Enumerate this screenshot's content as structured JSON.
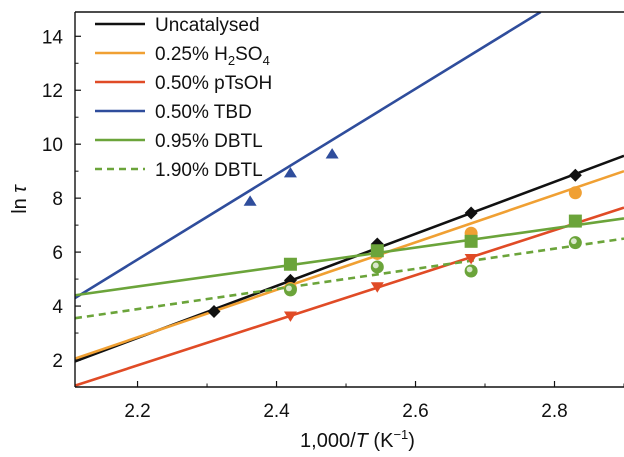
{
  "chart_data": {
    "type": "scatter",
    "xlabel_parts": {
      "prefix": "1,000/",
      "var": "T",
      "unit_open": " (K",
      "unit_exp": "−1",
      "unit_close": ")"
    },
    "ylabel_parts": {
      "prefix": "ln ",
      "var": "τ"
    },
    "xlim": [
      2.11,
      2.9
    ],
    "ylim": [
      1.0,
      14.9
    ],
    "x_ticks": [
      2.2,
      2.4,
      2.6,
      2.8
    ],
    "x_tick_labels": [
      "2.2",
      "2.4",
      "2.6",
      "2.8"
    ],
    "y_ticks": [
      2,
      4,
      6,
      8,
      10,
      12,
      14
    ],
    "y_tick_labels": [
      "2",
      "4",
      "6",
      "8",
      "10",
      "12",
      "14"
    ],
    "legend_position": "top-left",
    "series": [
      {
        "name": "Uncatalysed",
        "label_parts": [
          "Uncatalysed"
        ],
        "color": "#111111",
        "marker": "diamond",
        "dash": "solid",
        "fit": [
          [
            2.11,
            1.95
          ],
          [
            2.9,
            9.57
          ]
        ],
        "points": [
          [
            2.31,
            3.8
          ],
          [
            2.42,
            4.95
          ],
          [
            2.545,
            6.3
          ],
          [
            2.68,
            7.45
          ],
          [
            2.83,
            8.85
          ]
        ]
      },
      {
        "name": "0.25% H2SO4",
        "label_parts": [
          "0.25% H",
          "2",
          "SO",
          "4"
        ],
        "color": "#f0a033",
        "marker": "circle",
        "dash": "solid",
        "fit": [
          [
            2.11,
            2.05
          ],
          [
            2.9,
            9.0
          ]
        ],
        "points": [
          [
            2.42,
            4.65
          ],
          [
            2.545,
            5.95
          ],
          [
            2.68,
            6.7
          ],
          [
            2.83,
            8.2
          ]
        ]
      },
      {
        "name": "0.50% pTsOH",
        "label_parts": [
          "0.50% pTsOH"
        ],
        "color": "#e04b26",
        "marker": "triangle-down",
        "dash": "solid",
        "fit": [
          [
            2.11,
            1.05
          ],
          [
            2.9,
            7.65
          ]
        ],
        "points": [
          [
            2.42,
            3.62
          ],
          [
            2.545,
            4.7
          ],
          [
            2.68,
            5.75
          ]
        ]
      },
      {
        "name": "0.50% TBD",
        "label_parts": [
          "0.50% TBD"
        ],
        "color": "#2f4d9c",
        "marker": "triangle-up",
        "dash": "solid",
        "fit": [
          [
            2.11,
            4.3
          ],
          [
            2.78,
            14.9
          ]
        ],
        "points": [
          [
            2.362,
            7.9
          ],
          [
            2.42,
            8.95
          ],
          [
            2.48,
            9.65
          ]
        ]
      },
      {
        "name": "0.95% DBTL",
        "label_parts": [
          "0.95% DBTL"
        ],
        "color": "#6ba43a",
        "marker": "square",
        "dash": "solid",
        "fit": [
          [
            2.11,
            4.4
          ],
          [
            2.9,
            7.25
          ]
        ],
        "points": [
          [
            2.42,
            5.55
          ],
          [
            2.545,
            6.05
          ],
          [
            2.68,
            6.4
          ],
          [
            2.83,
            7.15
          ]
        ]
      },
      {
        "name": "1.90% DBTL",
        "label_parts": [
          "1.90% DBTL"
        ],
        "color": "#6ba43a",
        "marker": "circle-ring",
        "dash": "dashed",
        "fit": [
          [
            2.11,
            3.55
          ],
          [
            2.9,
            6.5
          ]
        ],
        "points": [
          [
            2.42,
            4.6
          ],
          [
            2.545,
            5.45
          ],
          [
            2.68,
            5.3
          ],
          [
            2.83,
            6.35
          ]
        ]
      }
    ]
  }
}
